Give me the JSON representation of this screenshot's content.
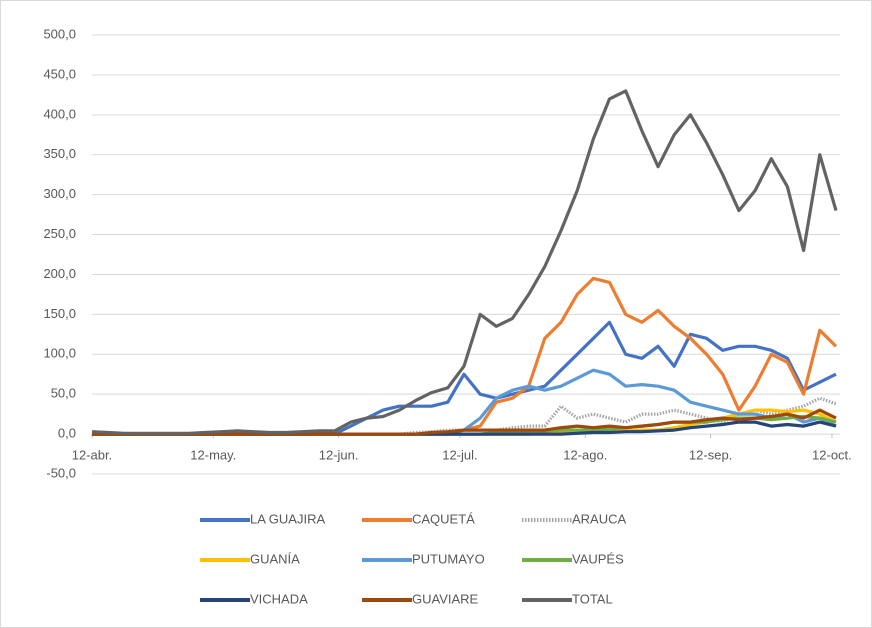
{
  "chart_data": {
    "type": "line",
    "x": [
      0,
      4,
      8,
      12,
      16,
      20,
      24,
      28,
      32,
      36,
      40,
      44,
      48,
      52,
      56,
      60,
      64,
      68,
      72,
      76,
      80,
      84,
      88,
      92,
      96,
      100,
      104,
      108,
      112,
      116,
      120,
      124,
      128,
      132,
      136,
      140,
      144,
      148,
      152,
      156,
      160,
      164,
      168,
      172,
      176,
      180,
      184
    ],
    "xlim": [
      0,
      185
    ],
    "xticks": [
      {
        "value": 0,
        "label": "12-abr."
      },
      {
        "value": 30,
        "label": "12-may."
      },
      {
        "value": 61,
        "label": "12-jun."
      },
      {
        "value": 91,
        "label": "12-jul."
      },
      {
        "value": 122,
        "label": "12-ago."
      },
      {
        "value": 153,
        "label": "12-sep."
      },
      {
        "value": 183,
        "label": "12-oct."
      }
    ],
    "ylim": [
      -50,
      500
    ],
    "yticks": [
      {
        "value": -50,
        "label": "-50,0"
      },
      {
        "value": 0,
        "label": "0,0"
      },
      {
        "value": 50,
        "label": "50,0"
      },
      {
        "value": 100,
        "label": "100,0"
      },
      {
        "value": 150,
        "label": "150,0"
      },
      {
        "value": 200,
        "label": "200,0"
      },
      {
        "value": 250,
        "label": "250,0"
      },
      {
        "value": 300,
        "label": "300,0"
      },
      {
        "value": 350,
        "label": "350,0"
      },
      {
        "value": 400,
        "label": "400,0"
      },
      {
        "value": 450,
        "label": "450,0"
      },
      {
        "value": 500,
        "label": "500,0"
      }
    ],
    "grid": true,
    "legend": "bottom",
    "series": [
      {
        "name": "LA GUAJIRA",
        "color": "#4472c4",
        "values": [
          0,
          0,
          0,
          0,
          0,
          0,
          0,
          0,
          0,
          0,
          0,
          0,
          0,
          0,
          0,
          0,
          10,
          20,
          30,
          35,
          35,
          35,
          40,
          75,
          50,
          45,
          50,
          55,
          60,
          80,
          100,
          120,
          140,
          100,
          95,
          110,
          85,
          125,
          120,
          105,
          110,
          110,
          105,
          95,
          55,
          65,
          75
        ]
      },
      {
        "name": "CAQUETÁ",
        "color": "#ed7d31",
        "values": [
          0,
          0,
          0,
          0,
          0,
          0,
          0,
          0,
          0,
          0,
          0,
          0,
          0,
          0,
          0,
          0,
          0,
          0,
          0,
          0,
          0,
          0,
          2,
          5,
          10,
          40,
          45,
          60,
          120,
          140,
          175,
          195,
          190,
          150,
          140,
          155,
          135,
          120,
          100,
          75,
          30,
          60,
          100,
          90,
          50,
          130,
          110
        ]
      },
      {
        "name": "ARAUCA",
        "color": "#a5a5a5",
        "dash": true,
        "values": [
          0,
          0,
          0,
          0,
          0,
          0,
          0,
          0,
          0,
          0,
          0,
          0,
          0,
          0,
          0,
          0,
          0,
          0,
          0,
          0,
          2,
          3,
          5,
          5,
          5,
          5,
          8,
          10,
          10,
          35,
          20,
          25,
          20,
          15,
          25,
          25,
          30,
          25,
          20,
          15,
          25,
          30,
          25,
          30,
          35,
          45,
          38
        ]
      },
      {
        "name": "GUANÍA",
        "color": "#ffc000",
        "values": [
          0,
          0,
          0,
          0,
          0,
          0,
          0,
          0,
          0,
          0,
          0,
          0,
          0,
          0,
          0,
          0,
          0,
          0,
          0,
          0,
          0,
          0,
          0,
          0,
          0,
          0,
          0,
          0,
          1,
          2,
          2,
          3,
          3,
          4,
          5,
          5,
          8,
          12,
          15,
          20,
          25,
          30,
          30,
          28,
          30,
          25,
          15
        ]
      },
      {
        "name": "PUTUMAYO",
        "color": "#5b9bd5",
        "values": [
          0,
          0,
          0,
          0,
          0,
          0,
          0,
          0,
          0,
          0,
          0,
          0,
          0,
          0,
          0,
          0,
          0,
          0,
          0,
          0,
          0,
          0,
          0,
          5,
          20,
          45,
          55,
          60,
          55,
          60,
          70,
          80,
          75,
          60,
          62,
          60,
          55,
          40,
          35,
          30,
          25,
          25,
          20,
          25,
          15,
          20,
          10
        ]
      },
      {
        "name": "VAUPÉS",
        "color": "#70ad47",
        "values": [
          0,
          0,
          0,
          0,
          0,
          0,
          0,
          0,
          0,
          0,
          0,
          0,
          0,
          0,
          0,
          0,
          0,
          0,
          0,
          0,
          0,
          0,
          0,
          0,
          0,
          2,
          3,
          3,
          4,
          5,
          5,
          5,
          6,
          8,
          10,
          12,
          15,
          15,
          15,
          18,
          20,
          20,
          18,
          20,
          22,
          20,
          15
        ]
      },
      {
        "name": "VICHADA",
        "color": "#264478",
        "values": [
          0,
          0,
          0,
          0,
          0,
          0,
          0,
          0,
          0,
          0,
          0,
          0,
          0,
          0,
          0,
          0,
          0,
          0,
          0,
          0,
          0,
          0,
          0,
          0,
          0,
          0,
          0,
          0,
          0,
          0,
          1,
          2,
          2,
          3,
          3,
          4,
          5,
          8,
          10,
          12,
          15,
          15,
          10,
          12,
          10,
          15,
          10
        ]
      },
      {
        "name": "GUAVIARE",
        "color": "#9e480e",
        "values": [
          0,
          0,
          0,
          0,
          0,
          0,
          0,
          0,
          0,
          0,
          0,
          0,
          0,
          0,
          0,
          0,
          0,
          0,
          0,
          0,
          0,
          2,
          3,
          5,
          5,
          5,
          5,
          5,
          5,
          8,
          10,
          8,
          10,
          8,
          10,
          12,
          15,
          15,
          18,
          20,
          18,
          20,
          22,
          25,
          20,
          30,
          20
        ]
      },
      {
        "name": "TOTAL",
        "color": "#636363",
        "values": [
          3,
          2,
          1,
          1,
          1,
          1,
          1,
          2,
          3,
          4,
          3,
          2,
          2,
          3,
          4,
          4,
          15,
          20,
          22,
          30,
          42,
          52,
          58,
          85,
          150,
          135,
          145,
          175,
          210,
          255,
          305,
          370,
          420,
          430,
          380,
          335,
          375,
          400,
          365,
          325,
          280,
          305,
          345,
          310,
          230,
          350,
          280
        ]
      }
    ]
  }
}
